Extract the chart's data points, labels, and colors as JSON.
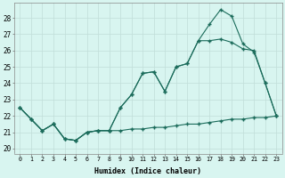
{
  "x": [
    0,
    1,
    2,
    3,
    4,
    5,
    6,
    7,
    8,
    9,
    10,
    11,
    12,
    13,
    14,
    15,
    16,
    17,
    18,
    19,
    20,
    21,
    22,
    23
  ],
  "line1": [
    22.5,
    21.8,
    21.1,
    21.5,
    20.6,
    20.5,
    21.0,
    21.1,
    21.1,
    21.1,
    21.2,
    21.2,
    21.3,
    21.3,
    21.4,
    21.5,
    21.5,
    21.6,
    21.7,
    21.8,
    21.8,
    21.9,
    21.9,
    22.0
  ],
  "line2": [
    22.5,
    21.8,
    21.1,
    21.5,
    20.6,
    20.5,
    21.0,
    21.1,
    21.1,
    22.5,
    23.3,
    24.6,
    24.7,
    23.5,
    25.0,
    25.2,
    26.6,
    26.6,
    26.7,
    26.5,
    26.1,
    26.0,
    24.0,
    22.0
  ],
  "line3": [
    22.5,
    21.8,
    21.1,
    21.5,
    20.6,
    20.5,
    21.0,
    21.1,
    21.1,
    22.5,
    23.3,
    24.6,
    24.7,
    23.5,
    25.0,
    25.2,
    26.6,
    27.6,
    28.5,
    28.1,
    26.4,
    25.9,
    24.0,
    22.0
  ],
  "line_color": "#1a6b5a",
  "bg_color": "#d8f5f0",
  "grid_color": "#c0ddd8",
  "xlabel": "Humidex (Indice chaleur)",
  "ylabel_ticks": [
    20,
    21,
    22,
    23,
    24,
    25,
    26,
    27,
    28
  ],
  "xlim": [
    -0.5,
    23.5
  ],
  "ylim": [
    19.7,
    28.9
  ]
}
